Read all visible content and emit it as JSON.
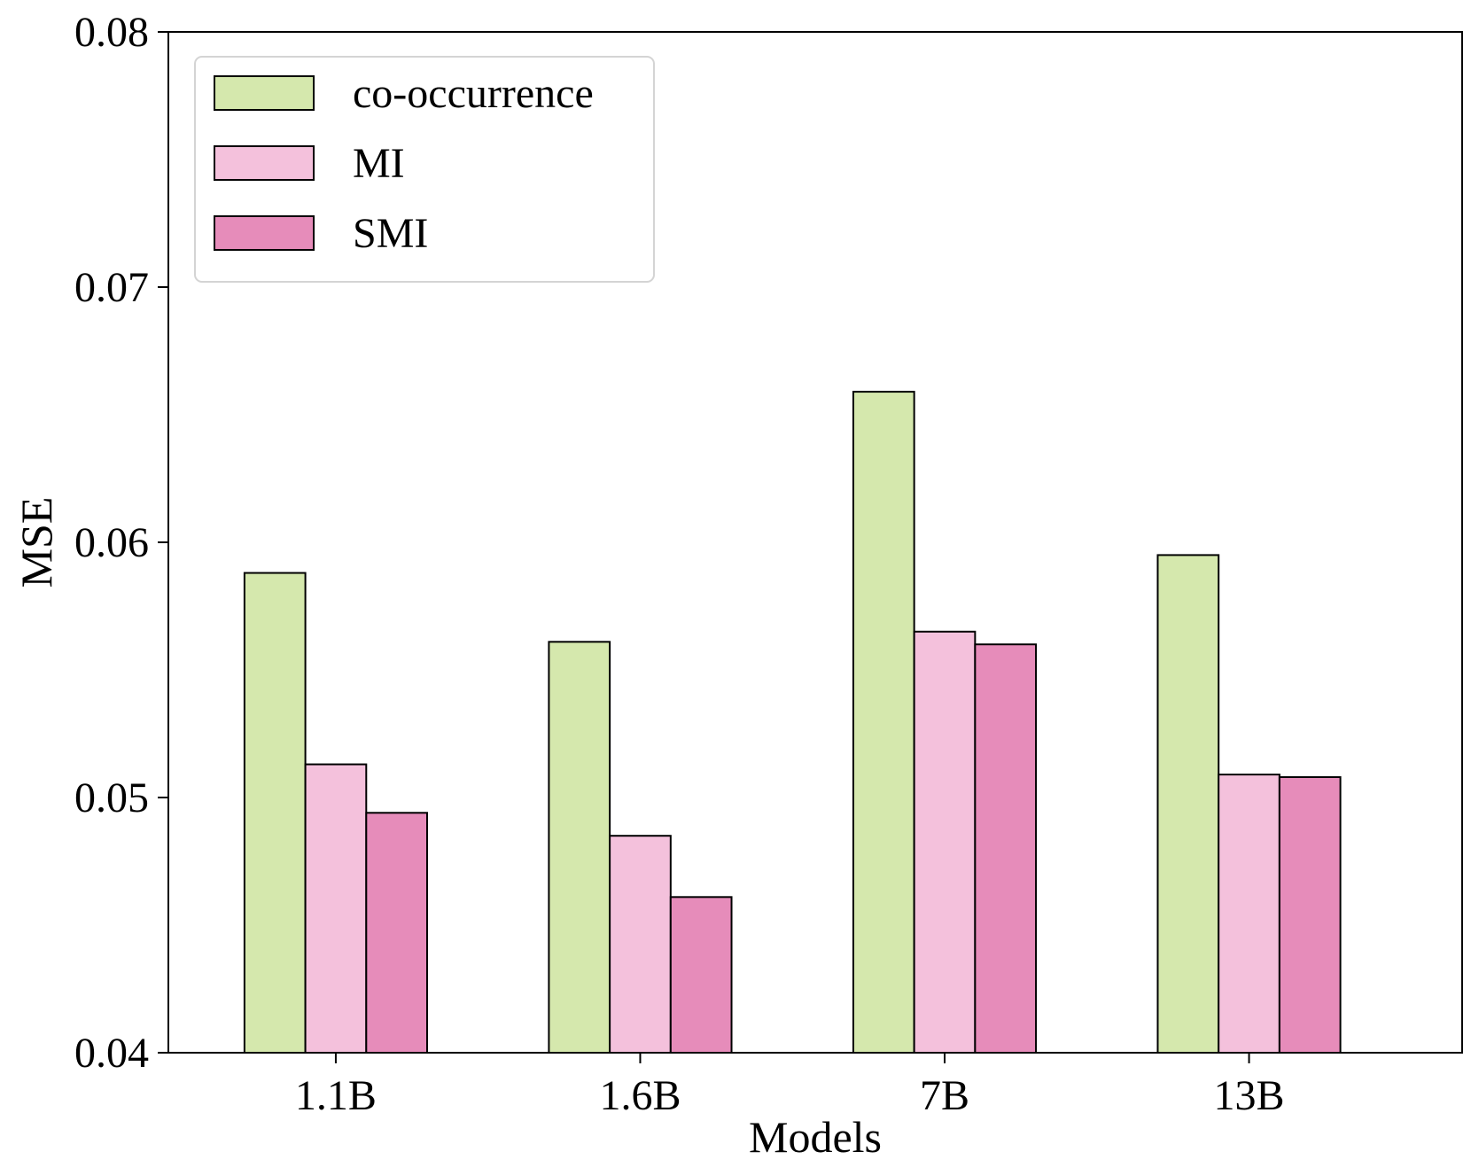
{
  "chart_data": {
    "type": "bar",
    "title": "",
    "xlabel": "Models",
    "ylabel": "MSE",
    "categories": [
      "1.1B",
      "1.6B",
      "7B",
      "13B"
    ],
    "ylim": [
      0.04,
      0.08
    ],
    "yticks": [
      0.04,
      0.05,
      0.06,
      0.07,
      0.08
    ],
    "ytick_labels": [
      "0.04",
      "0.05",
      "0.06",
      "0.07",
      "0.08"
    ],
    "grid": false,
    "legend_position": "top-left",
    "series": [
      {
        "name": "co-occurrence",
        "color": "#d5e8ad",
        "values": [
          0.0588,
          0.0561,
          0.0659,
          0.0595
        ]
      },
      {
        "name": "MI",
        "color": "#f4c1dc",
        "values": [
          0.0513,
          0.0485,
          0.0565,
          0.0509
        ]
      },
      {
        "name": "SMI",
        "color": "#e68cba",
        "values": [
          0.0494,
          0.0461,
          0.056,
          0.0508
        ]
      }
    ]
  }
}
